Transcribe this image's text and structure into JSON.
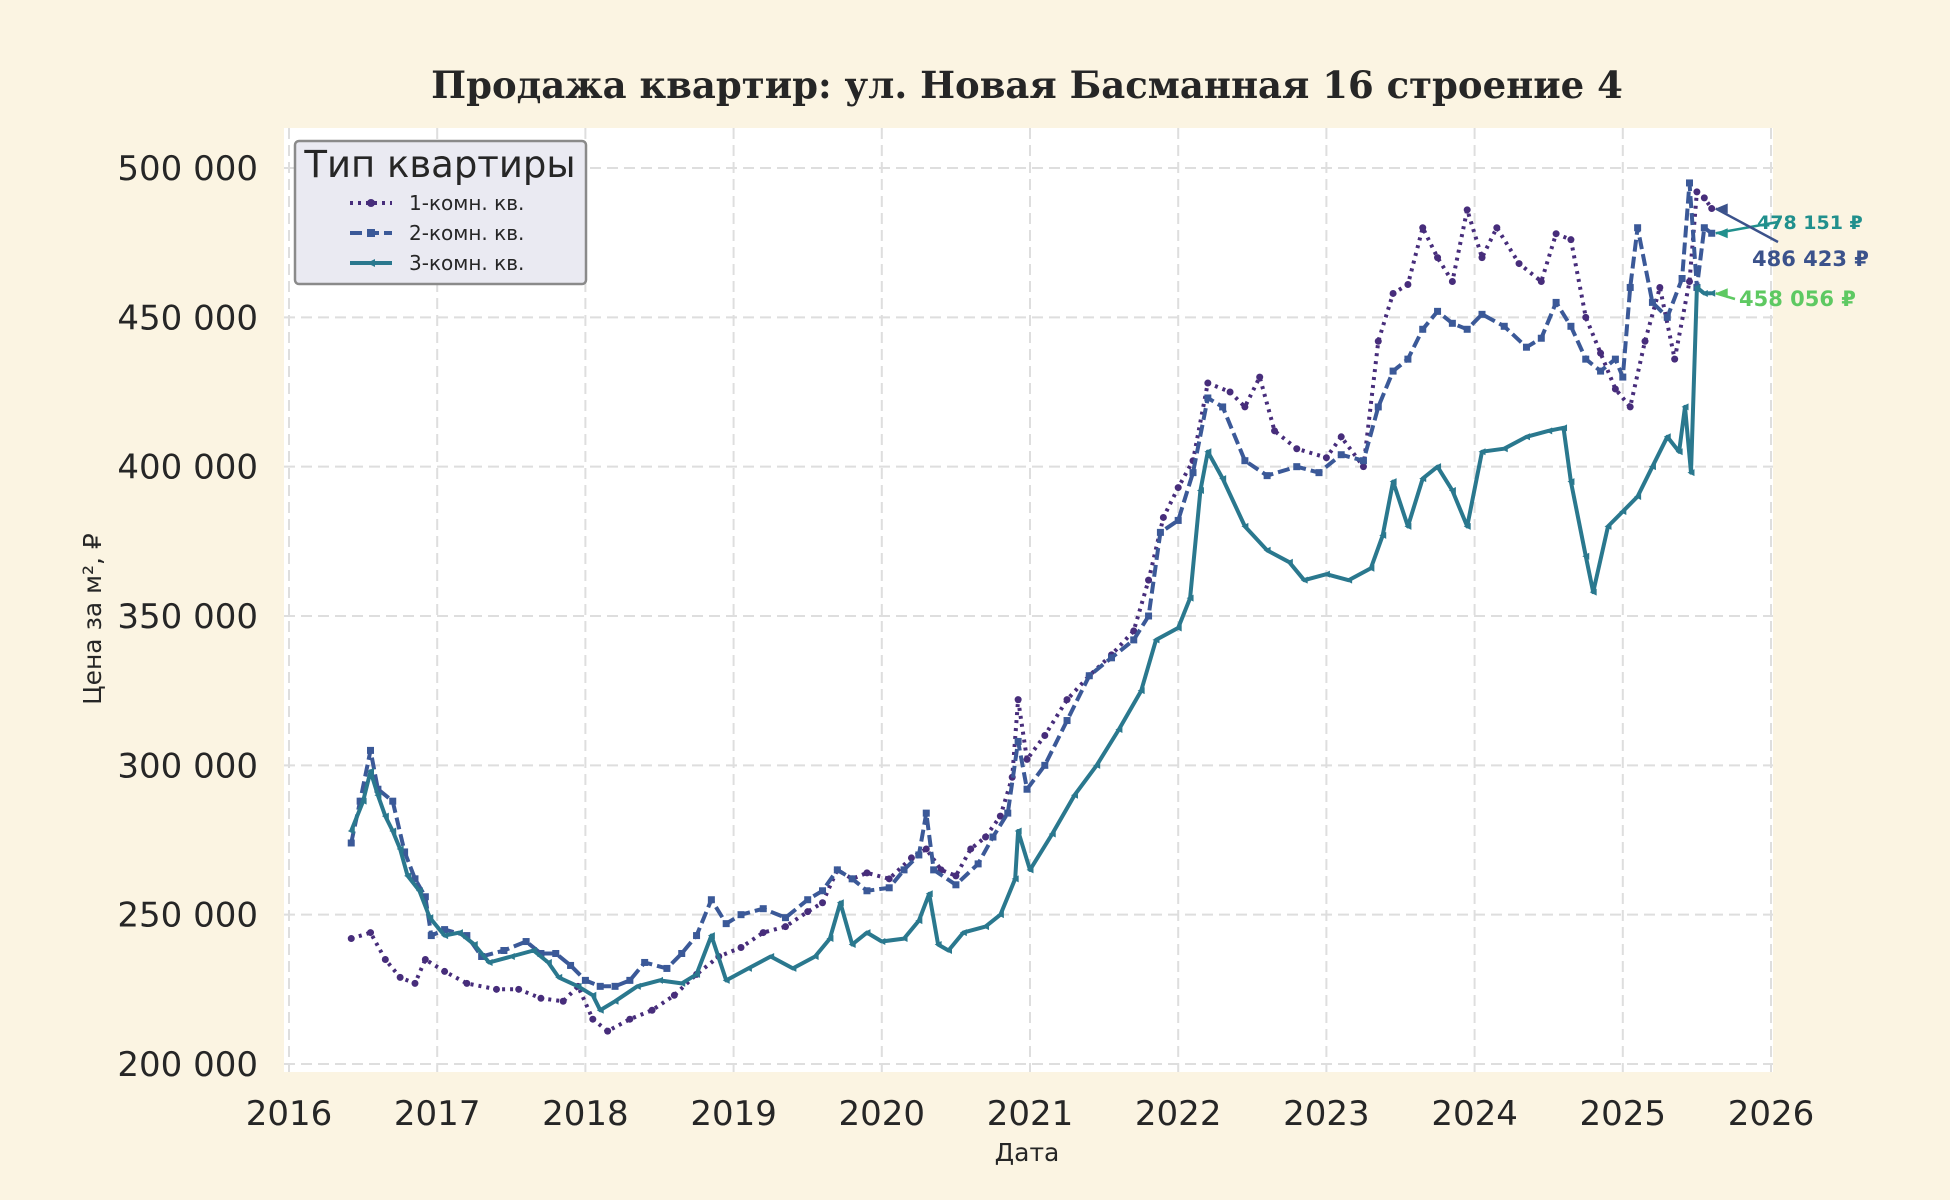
{
  "chart_data": {
    "type": "line",
    "title": "Продажа квартир: ул. Новая Басманная 16 строение 4",
    "xlabel": "Дата",
    "ylabel": "Цена за м², ₽",
    "xlim": [
      2016.0,
      2026.0
    ],
    "ylim": [
      200000,
      500000
    ],
    "x_ticks": [
      "2016",
      "2017",
      "2018",
      "2019",
      "2020",
      "2021",
      "2022",
      "2023",
      "2024",
      "2025",
      "2026"
    ],
    "y_ticks": [
      "200 000",
      "250 000",
      "300 000",
      "350 000",
      "400 000",
      "450 000",
      "500 000"
    ],
    "grid": true,
    "legend": {
      "title": "Тип квартиры",
      "placement": "top-left"
    },
    "series": [
      {
        "name": "1-комн. кв.",
        "color": "#472d7b",
        "style": "dotted",
        "marker": "circle",
        "points": [
          [
            2016.42,
            242000
          ],
          [
            2016.55,
            244000
          ],
          [
            2016.65,
            235000
          ],
          [
            2016.75,
            229000
          ],
          [
            2016.85,
            227000
          ],
          [
            2016.92,
            235000
          ],
          [
            2017.05,
            231000
          ],
          [
            2017.2,
            227000
          ],
          [
            2017.4,
            225000
          ],
          [
            2017.55,
            225000
          ],
          [
            2017.7,
            222000
          ],
          [
            2017.85,
            221000
          ],
          [
            2017.95,
            226000
          ],
          [
            2018.05,
            215000
          ],
          [
            2018.15,
            211000
          ],
          [
            2018.3,
            215000
          ],
          [
            2018.45,
            218000
          ],
          [
            2018.6,
            223000
          ],
          [
            2018.75,
            230000
          ],
          [
            2018.9,
            236000
          ],
          [
            2019.05,
            239000
          ],
          [
            2019.2,
            244000
          ],
          [
            2019.35,
            246000
          ],
          [
            2019.5,
            251000
          ],
          [
            2019.6,
            254000
          ],
          [
            2019.7,
            265000
          ],
          [
            2019.8,
            262000
          ],
          [
            2019.9,
            264000
          ],
          [
            2020.05,
            262000
          ],
          [
            2020.2,
            269000
          ],
          [
            2020.3,
            272000
          ],
          [
            2020.4,
            265000
          ],
          [
            2020.5,
            263000
          ],
          [
            2020.6,
            272000
          ],
          [
            2020.7,
            276000
          ],
          [
            2020.8,
            283000
          ],
          [
            2020.88,
            296000
          ],
          [
            2020.92,
            322000
          ],
          [
            2020.98,
            302000
          ],
          [
            2021.1,
            310000
          ],
          [
            2021.25,
            322000
          ],
          [
            2021.4,
            330000
          ],
          [
            2021.55,
            337000
          ],
          [
            2021.7,
            345000
          ],
          [
            2021.8,
            362000
          ],
          [
            2021.9,
            383000
          ],
          [
            2022.0,
            393000
          ],
          [
            2022.1,
            402000
          ],
          [
            2022.2,
            428000
          ],
          [
            2022.35,
            425000
          ],
          [
            2022.45,
            420000
          ],
          [
            2022.55,
            430000
          ],
          [
            2022.65,
            412000
          ],
          [
            2022.8,
            406000
          ],
          [
            2023.0,
            403000
          ],
          [
            2023.1,
            410000
          ],
          [
            2023.25,
            400000
          ],
          [
            2023.35,
            442000
          ],
          [
            2023.45,
            458000
          ],
          [
            2023.55,
            461000
          ],
          [
            2023.65,
            480000
          ],
          [
            2023.75,
            470000
          ],
          [
            2023.85,
            462000
          ],
          [
            2023.95,
            486000
          ],
          [
            2024.05,
            470000
          ],
          [
            2024.15,
            480000
          ],
          [
            2024.3,
            468000
          ],
          [
            2024.45,
            462000
          ],
          [
            2024.55,
            478000
          ],
          [
            2024.65,
            476000
          ],
          [
            2024.75,
            450000
          ],
          [
            2024.85,
            438000
          ],
          [
            2024.95,
            426000
          ],
          [
            2025.05,
            420000
          ],
          [
            2025.15,
            442000
          ],
          [
            2025.25,
            460000
          ],
          [
            2025.35,
            436000
          ],
          [
            2025.45,
            462000
          ],
          [
            2025.5,
            492000
          ],
          [
            2025.55,
            490000
          ],
          [
            2025.6,
            486423
          ]
        ]
      },
      {
        "name": "2-комн. кв.",
        "color": "#3b5998",
        "style": "dashed",
        "marker": "square",
        "points": [
          [
            2016.42,
            274000
          ],
          [
            2016.48,
            288000
          ],
          [
            2016.55,
            305000
          ],
          [
            2016.6,
            292000
          ],
          [
            2016.7,
            288000
          ],
          [
            2016.78,
            271000
          ],
          [
            2016.85,
            262000
          ],
          [
            2016.92,
            256000
          ],
          [
            2016.96,
            243000
          ],
          [
            2017.05,
            245000
          ],
          [
            2017.2,
            243000
          ],
          [
            2017.3,
            236000
          ],
          [
            2017.45,
            238000
          ],
          [
            2017.6,
            241000
          ],
          [
            2017.7,
            237000
          ],
          [
            2017.8,
            237000
          ],
          [
            2017.9,
            233000
          ],
          [
            2018.0,
            228000
          ],
          [
            2018.1,
            226000
          ],
          [
            2018.2,
            226000
          ],
          [
            2018.3,
            228000
          ],
          [
            2018.4,
            234000
          ],
          [
            2018.55,
            232000
          ],
          [
            2018.65,
            237000
          ],
          [
            2018.75,
            243000
          ],
          [
            2018.85,
            255000
          ],
          [
            2018.95,
            247000
          ],
          [
            2019.05,
            250000
          ],
          [
            2019.2,
            252000
          ],
          [
            2019.35,
            249000
          ],
          [
            2019.5,
            255000
          ],
          [
            2019.6,
            258000
          ],
          [
            2019.7,
            265000
          ],
          [
            2019.8,
            262000
          ],
          [
            2019.9,
            258000
          ],
          [
            2020.05,
            259000
          ],
          [
            2020.15,
            265000
          ],
          [
            2020.25,
            270000
          ],
          [
            2020.3,
            284000
          ],
          [
            2020.35,
            265000
          ],
          [
            2020.5,
            260000
          ],
          [
            2020.65,
            267000
          ],
          [
            2020.75,
            276000
          ],
          [
            2020.85,
            284000
          ],
          [
            2020.92,
            308000
          ],
          [
            2020.98,
            292000
          ],
          [
            2021.1,
            300000
          ],
          [
            2021.25,
            315000
          ],
          [
            2021.4,
            330000
          ],
          [
            2021.55,
            336000
          ],
          [
            2021.7,
            342000
          ],
          [
            2021.8,
            350000
          ],
          [
            2021.88,
            378000
          ],
          [
            2022.0,
            382000
          ],
          [
            2022.1,
            398000
          ],
          [
            2022.2,
            423000
          ],
          [
            2022.3,
            420000
          ],
          [
            2022.45,
            402000
          ],
          [
            2022.6,
            397000
          ],
          [
            2022.8,
            400000
          ],
          [
            2022.95,
            398000
          ],
          [
            2023.1,
            404000
          ],
          [
            2023.25,
            402000
          ],
          [
            2023.35,
            420000
          ],
          [
            2023.45,
            432000
          ],
          [
            2023.55,
            436000
          ],
          [
            2023.65,
            446000
          ],
          [
            2023.75,
            452000
          ],
          [
            2023.85,
            448000
          ],
          [
            2023.95,
            446000
          ],
          [
            2024.05,
            451000
          ],
          [
            2024.2,
            447000
          ],
          [
            2024.35,
            440000
          ],
          [
            2024.45,
            443000
          ],
          [
            2024.55,
            455000
          ],
          [
            2024.65,
            447000
          ],
          [
            2024.75,
            436000
          ],
          [
            2024.85,
            432000
          ],
          [
            2024.95,
            436000
          ],
          [
            2025.0,
            430000
          ],
          [
            2025.05,
            460000
          ],
          [
            2025.1,
            480000
          ],
          [
            2025.2,
            455000
          ],
          [
            2025.3,
            450000
          ],
          [
            2025.4,
            463000
          ],
          [
            2025.45,
            495000
          ],
          [
            2025.5,
            460000
          ],
          [
            2025.55,
            480000
          ],
          [
            2025.6,
            478151
          ]
        ]
      },
      {
        "name": "3-комн. кв.",
        "color": "#2a788e",
        "style": "solid",
        "marker": "triangle",
        "points": [
          [
            2016.42,
            278000
          ],
          [
            2016.5,
            288000
          ],
          [
            2016.55,
            298000
          ],
          [
            2016.6,
            290000
          ],
          [
            2016.65,
            283000
          ],
          [
            2016.7,
            278000
          ],
          [
            2016.75,
            272000
          ],
          [
            2016.8,
            263000
          ],
          [
            2016.88,
            258000
          ],
          [
            2016.95,
            249000
          ],
          [
            2017.05,
            243000
          ],
          [
            2017.15,
            244000
          ],
          [
            2017.25,
            240000
          ],
          [
            2017.35,
            234000
          ],
          [
            2017.5,
            236000
          ],
          [
            2017.65,
            238000
          ],
          [
            2017.75,
            234000
          ],
          [
            2017.82,
            229000
          ],
          [
            2017.95,
            226000
          ],
          [
            2018.05,
            223000
          ],
          [
            2018.1,
            218000
          ],
          [
            2018.2,
            221000
          ],
          [
            2018.35,
            226000
          ],
          [
            2018.5,
            228000
          ],
          [
            2018.65,
            227000
          ],
          [
            2018.75,
            230000
          ],
          [
            2018.85,
            243000
          ],
          [
            2018.95,
            228000
          ],
          [
            2019.1,
            232000
          ],
          [
            2019.25,
            236000
          ],
          [
            2019.4,
            232000
          ],
          [
            2019.55,
            236000
          ],
          [
            2019.65,
            242000
          ],
          [
            2019.72,
            254000
          ],
          [
            2019.8,
            240000
          ],
          [
            2019.9,
            244000
          ],
          [
            2020.0,
            241000
          ],
          [
            2020.15,
            242000
          ],
          [
            2020.25,
            248000
          ],
          [
            2020.32,
            257000
          ],
          [
            2020.38,
            240000
          ],
          [
            2020.45,
            238000
          ],
          [
            2020.55,
            244000
          ],
          [
            2020.7,
            246000
          ],
          [
            2020.8,
            250000
          ],
          [
            2020.9,
            262000
          ],
          [
            2020.92,
            278000
          ],
          [
            2021.0,
            265000
          ],
          [
            2021.15,
            277000
          ],
          [
            2021.3,
            290000
          ],
          [
            2021.45,
            300000
          ],
          [
            2021.6,
            312000
          ],
          [
            2021.75,
            325000
          ],
          [
            2021.85,
            342000
          ],
          [
            2022.0,
            346000
          ],
          [
            2022.08,
            356000
          ],
          [
            2022.15,
            392000
          ],
          [
            2022.2,
            405000
          ],
          [
            2022.3,
            396000
          ],
          [
            2022.45,
            380000
          ],
          [
            2022.6,
            372000
          ],
          [
            2022.75,
            368000
          ],
          [
            2022.85,
            362000
          ],
          [
            2023.0,
            364000
          ],
          [
            2023.15,
            362000
          ],
          [
            2023.3,
            366000
          ],
          [
            2023.38,
            377000
          ],
          [
            2023.45,
            395000
          ],
          [
            2023.55,
            380000
          ],
          [
            2023.65,
            396000
          ],
          [
            2023.75,
            400000
          ],
          [
            2023.85,
            392000
          ],
          [
            2023.95,
            380000
          ],
          [
            2024.05,
            405000
          ],
          [
            2024.2,
            406000
          ],
          [
            2024.35,
            410000
          ],
          [
            2024.5,
            412000
          ],
          [
            2024.6,
            413000
          ],
          [
            2024.65,
            395000
          ],
          [
            2024.75,
            370000
          ],
          [
            2024.8,
            358000
          ],
          [
            2024.9,
            380000
          ],
          [
            2025.0,
            385000
          ],
          [
            2025.1,
            390000
          ],
          [
            2025.2,
            400000
          ],
          [
            2025.3,
            410000
          ],
          [
            2025.38,
            405000
          ],
          [
            2025.42,
            420000
          ],
          [
            2025.46,
            398000
          ],
          [
            2025.5,
            460000
          ],
          [
            2025.55,
            458000
          ],
          [
            2025.6,
            458056
          ]
        ]
      }
    ],
    "annotations": [
      {
        "text": "478 151 ₽",
        "series": "2-комн. кв.",
        "color": "#21908d",
        "size": "small"
      },
      {
        "text": "486 423 ₽",
        "series": "1-комн. кв.",
        "color": "#3b528b",
        "size": "medium"
      },
      {
        "text": "458 056 ₽",
        "series": "3-комн. кв.",
        "color": "#5ec962",
        "size": "medium"
      }
    ]
  }
}
